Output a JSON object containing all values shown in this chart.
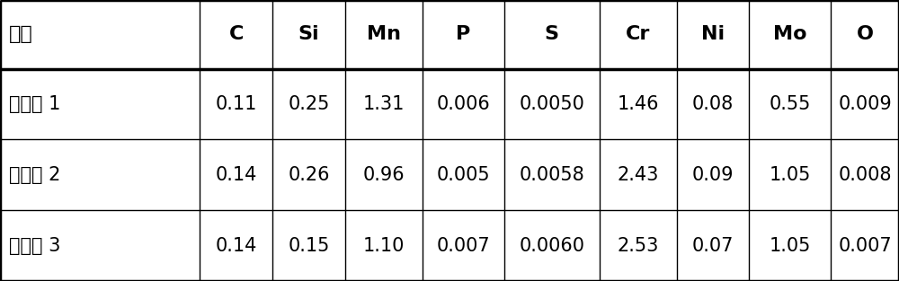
{
  "columns": [
    "类别",
    "C",
    "Si",
    "Mn",
    "P",
    "S",
    "Cr",
    "Ni",
    "Mo",
    "O"
  ],
  "rows": [
    [
      "实施例 1",
      "0.11",
      "0.25",
      "1.31",
      "0.006",
      "0.0050",
      "1.46",
      "0.08",
      "0.55",
      "0.009"
    ],
    [
      "实施例 2",
      "0.14",
      "0.26",
      "0.96",
      "0.005",
      "0.0058",
      "2.43",
      "0.09",
      "1.05",
      "0.008"
    ],
    [
      "实施例 3",
      "0.14",
      "0.15",
      "1.10",
      "0.007",
      "0.0060",
      "2.53",
      "0.07",
      "1.05",
      "0.007"
    ]
  ],
  "col_widths_ratio": [
    2.2,
    0.8,
    0.8,
    0.85,
    0.9,
    1.05,
    0.85,
    0.8,
    0.9,
    0.75
  ],
  "background_color": "#ffffff",
  "line_color": "#000000",
  "text_color": "#000000",
  "header_fontsize": 16,
  "cell_fontsize": 15,
  "bold_headers": [
    "C",
    "Si",
    "Mn",
    "P",
    "S",
    "Cr",
    "Ni",
    "Mo",
    "O"
  ],
  "thick_lw": 2.5,
  "thin_lw": 1.0,
  "outer_lw": 2.5
}
